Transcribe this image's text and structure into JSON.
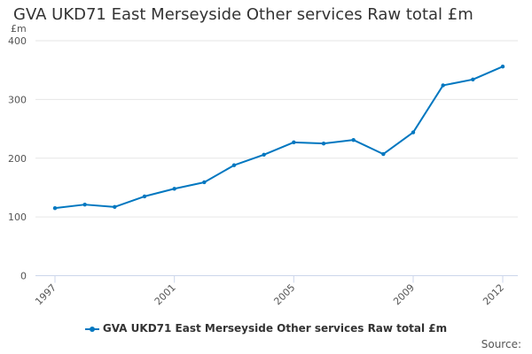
{
  "chart_data": {
    "type": "line",
    "title": "GVA UKD71 East Merseyside Other services Raw total £m",
    "ylabel": "£m",
    "xlabel": "",
    "ylim": [
      0,
      400
    ],
    "yticks": [
      0,
      100,
      200,
      300,
      400
    ],
    "xticks": [
      1997,
      2001,
      2005,
      2009,
      2012
    ],
    "grid": true,
    "legend_position": "bottom",
    "x": [
      1997,
      1998,
      1999,
      2000,
      2001,
      2002,
      2003,
      2004,
      2005,
      2006,
      2007,
      2008,
      2009,
      2010,
      2011,
      2012
    ],
    "series": [
      {
        "name": "GVA UKD71 East Merseyside Other services Raw total £m",
        "color": "#0077c0",
        "values": [
          115,
          121,
          117,
          135,
          148,
          159,
          188,
          206,
          227,
          225,
          231,
          207,
          244,
          324,
          334,
          356
        ]
      }
    ]
  },
  "source_label": "Source:"
}
